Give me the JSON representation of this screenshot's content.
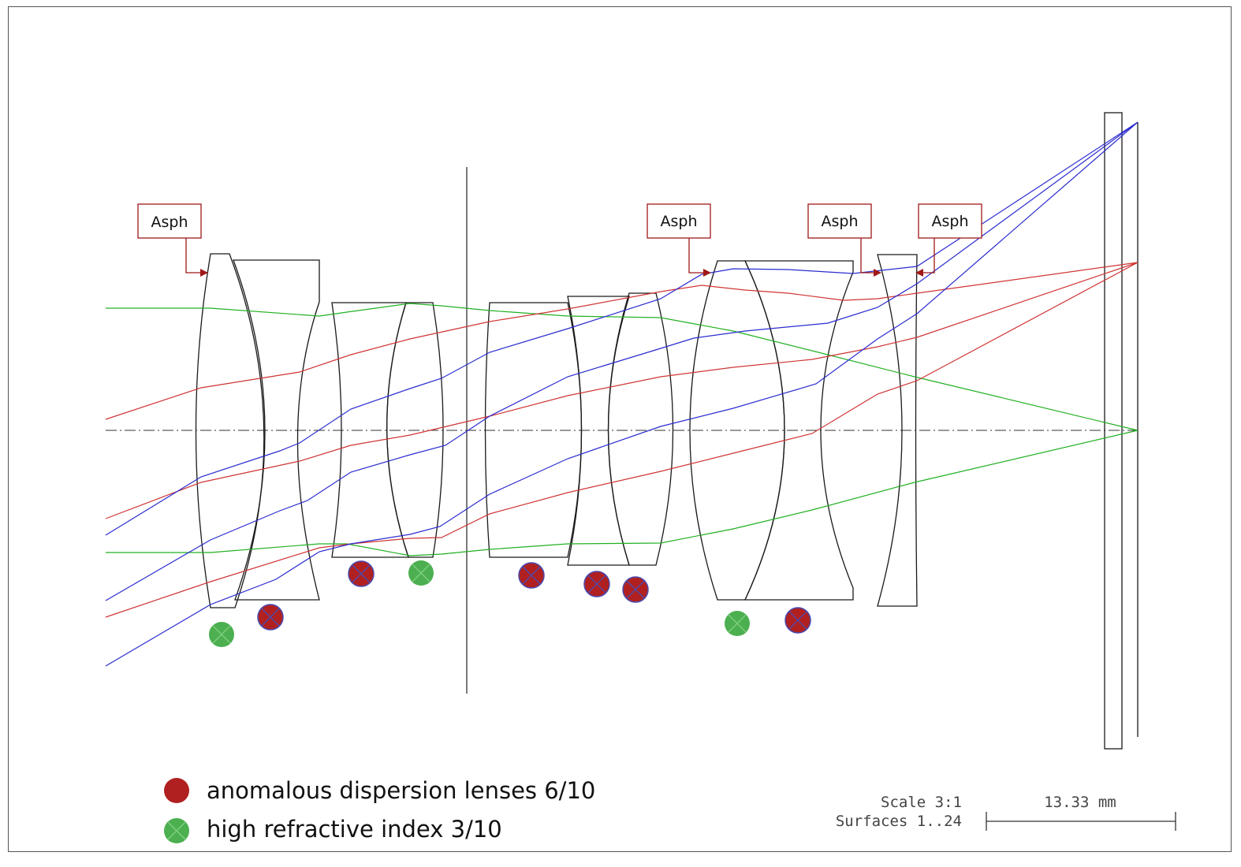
{
  "annotations": {
    "aspherical_label": "Asph"
  },
  "legend": {
    "anomalous": {
      "text": "anomalous dispersion lenses 6/10",
      "color": "#b02020"
    },
    "high_index": {
      "text": "high refractive index  3/10",
      "color": "#4caf50"
    }
  },
  "scale_info": {
    "scale": "Scale 3:1",
    "surfaces": "Surfaces 1..24",
    "bar_label": "13.33 mm"
  },
  "colors": {
    "ray_green": "#22b022",
    "ray_red": "#d03535",
    "ray_blue": "#2b2bd0",
    "marker_red": "#b02020",
    "marker_green": "#4caf50",
    "marker_cross": "#4a4ab0",
    "asph_box": "#a01818"
  },
  "lens_count": "10",
  "surface_count": "24"
}
